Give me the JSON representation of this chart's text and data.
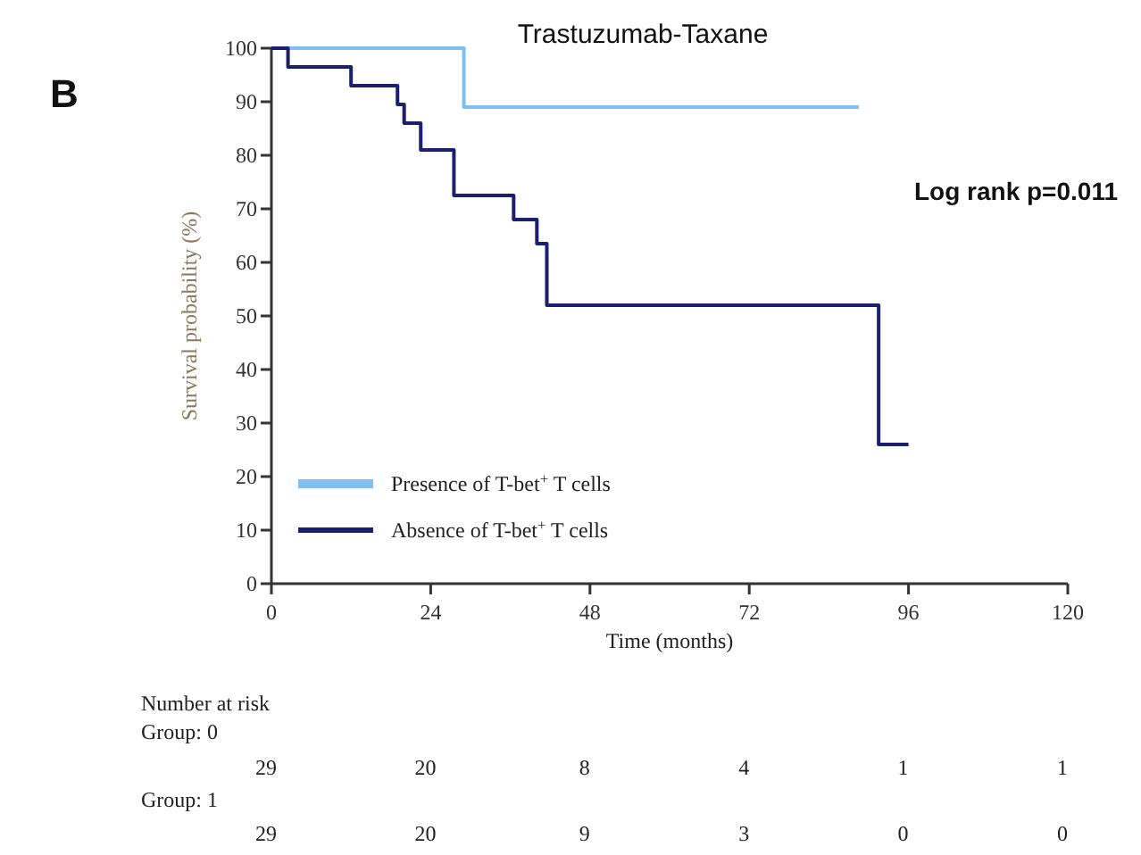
{
  "chart_data": {
    "type": "step",
    "title": "Trastuzumab-Taxane",
    "xlabel": "Time (months)",
    "ylabel": "Survival probability (%)",
    "xlim": [
      0,
      120
    ],
    "xticks": [
      0,
      24,
      48,
      72,
      96,
      120
    ],
    "ylim": [
      0,
      100
    ],
    "yticks": [
      0,
      10,
      20,
      30,
      40,
      50,
      60,
      70,
      80,
      90,
      100
    ],
    "legend": "bottom left",
    "grid": false,
    "marker": "none",
    "line_style": "solid",
    "series": [
      {
        "name": "Presence of T-bet$^{+}$ T cells",
        "color": "#7fbfef",
        "x": [
          0,
          29,
          88.5
        ],
        "values": [
          100,
          89,
          89
        ]
      },
      {
        "name": "Absence of T-bet$^{+}$ T cells",
        "color": "#1a1f6e",
        "x": [
          0,
          2.5,
          12,
          19,
          20,
          22.5,
          27.5,
          36.5,
          40,
          41.5,
          91.5,
          96
        ],
        "values": [
          100,
          96.5,
          93,
          89.5,
          86,
          81,
          72.5,
          68,
          63.5,
          52,
          26,
          26
        ]
      }
    ],
    "annotations": [
      "B",
      "Log rank p=0.011",
      "Number at risk",
      "Group: 0",
      "29",
      "20",
      "8",
      "4",
      "1",
      "1",
      "Group: 1",
      "29",
      "20",
      "9",
      "3",
      "0",
      "0"
    ]
  }
}
